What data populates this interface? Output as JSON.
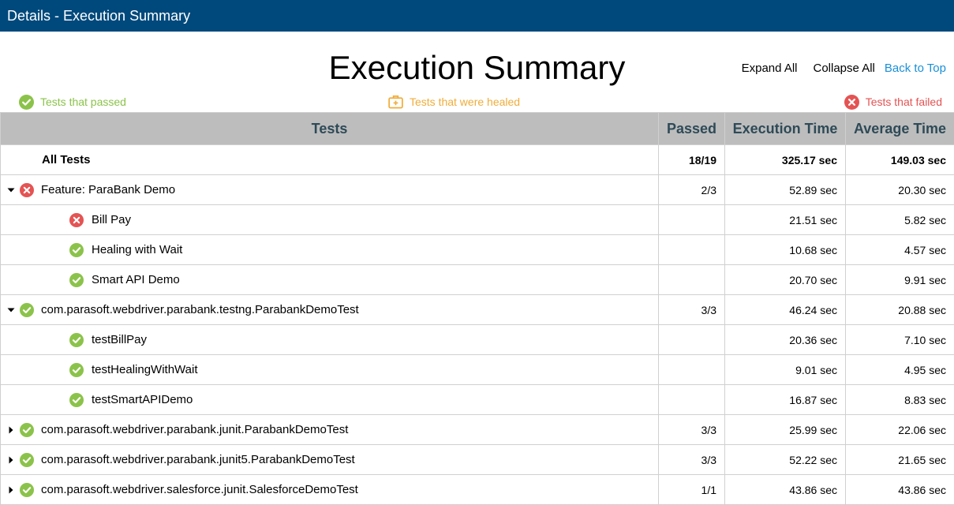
{
  "window": {
    "title": "Details - Execution Summary"
  },
  "page": {
    "title": "Execution Summary",
    "links": {
      "expand_all": "Expand All",
      "collapse_all": "Collapse All",
      "back_to_top": "Back to Top"
    }
  },
  "legend": {
    "passed": "Tests that passed",
    "healed": "Tests that were healed",
    "failed": "Tests that failed"
  },
  "colors": {
    "header_bar": "#00497c",
    "pass": "#8bc34a",
    "heal": "#f0ad3a",
    "fail": "#e55353",
    "link": "#1a90d8",
    "table_header_bg": "#bdbdbd",
    "table_header_text": "#2e4a57"
  },
  "table": {
    "headers": {
      "tests": "Tests",
      "passed": "Passed",
      "execution_time": "Execution Time",
      "average_time": "Average Time"
    },
    "all_tests": {
      "label": "All Tests",
      "passed": "18/19",
      "execution_time": "325.17 sec",
      "average_time": "149.03 sec"
    },
    "groups": [
      {
        "label": "Feature: ParaBank Demo",
        "status": "failed",
        "expanded": true,
        "passed": "2/3",
        "execution_time": "52.89 sec",
        "average_time": "20.30 sec",
        "children": [
          {
            "label": "Bill Pay",
            "status": "failed",
            "execution_time": "21.51 sec",
            "average_time": "5.82 sec"
          },
          {
            "label": "Healing with Wait",
            "status": "passed",
            "execution_time": "10.68 sec",
            "average_time": "4.57 sec"
          },
          {
            "label": "Smart API Demo",
            "status": "passed",
            "execution_time": "20.70 sec",
            "average_time": "9.91 sec"
          }
        ]
      },
      {
        "label": "com.parasoft.webdriver.parabank.testng.ParabankDemoTest",
        "status": "passed",
        "expanded": true,
        "passed": "3/3",
        "execution_time": "46.24 sec",
        "average_time": "20.88 sec",
        "children": [
          {
            "label": "testBillPay",
            "status": "passed",
            "execution_time": "20.36 sec",
            "average_time": "7.10 sec"
          },
          {
            "label": "testHealingWithWait",
            "status": "passed",
            "execution_time": "9.01 sec",
            "average_time": "4.95 sec"
          },
          {
            "label": "testSmartAPIDemo",
            "status": "passed",
            "execution_time": "16.87 sec",
            "average_time": "8.83 sec"
          }
        ]
      },
      {
        "label": "com.parasoft.webdriver.parabank.junit.ParabankDemoTest",
        "status": "passed",
        "expanded": false,
        "passed": "3/3",
        "execution_time": "25.99 sec",
        "average_time": "22.06 sec",
        "children": []
      },
      {
        "label": "com.parasoft.webdriver.parabank.junit5.ParabankDemoTest",
        "status": "passed",
        "expanded": false,
        "passed": "3/3",
        "execution_time": "52.22 sec",
        "average_time": "21.65 sec",
        "children": []
      },
      {
        "label": "com.parasoft.webdriver.salesforce.junit.SalesforceDemoTest",
        "status": "passed",
        "expanded": false,
        "passed": "1/1",
        "execution_time": "43.86 sec",
        "average_time": "43.86 sec",
        "children": []
      }
    ]
  }
}
